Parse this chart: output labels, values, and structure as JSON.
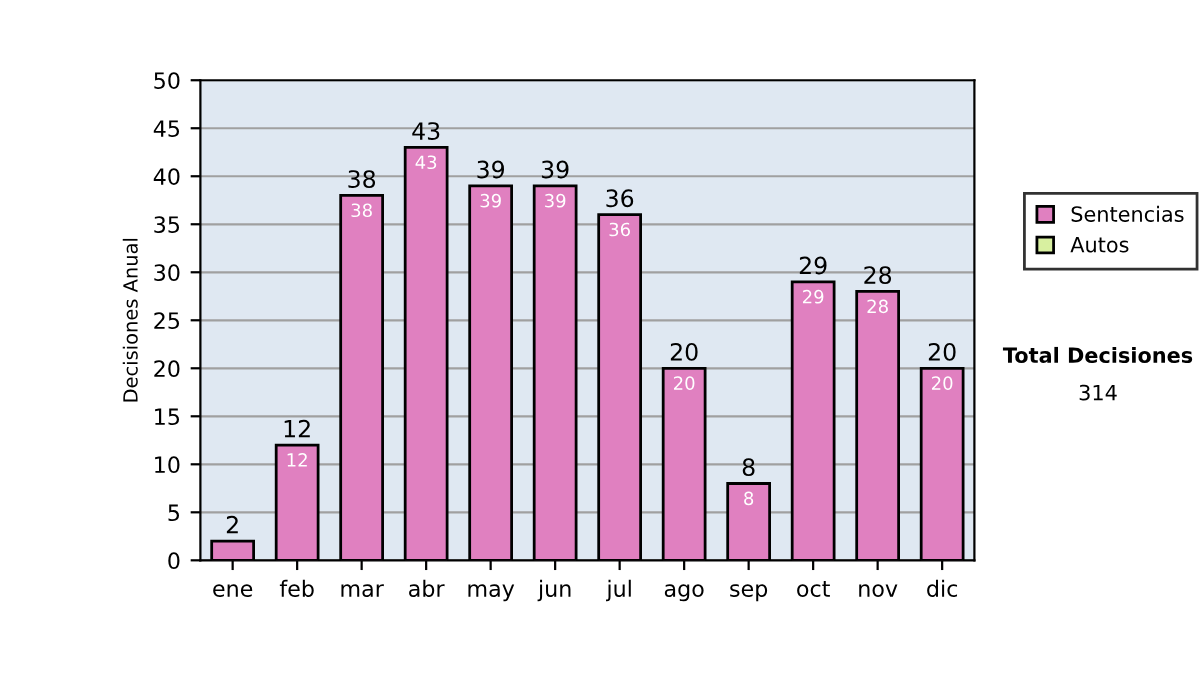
{
  "chart_data": {
    "type": "bar",
    "ylabel": "Decisiones Anual",
    "categories": [
      "ene",
      "feb",
      "mar",
      "abr",
      "may",
      "jun",
      "jul",
      "ago",
      "sep",
      "oct",
      "nov",
      "dic"
    ],
    "series": [
      {
        "name": "Sentencias",
        "color": "#e080c0",
        "values": [
          2,
          12,
          38,
          43,
          39,
          39,
          36,
          20,
          8,
          29,
          28,
          20
        ],
        "value_labels": [
          null,
          "12",
          "38",
          "43",
          "39",
          "39",
          "36",
          "20",
          "8",
          "29",
          "28",
          "20"
        ]
      },
      {
        "name": "Autos",
        "color": "#d8f0a0",
        "values": [
          null,
          null,
          null,
          null,
          null,
          null,
          null,
          null,
          null,
          null,
          null,
          null
        ]
      }
    ],
    "stacked": true,
    "totals": [
      "2",
      "12",
      "38",
      "43",
      "39",
      "39",
      "36",
      "20",
      "8",
      "29",
      "28",
      "20"
    ],
    "ylim": [
      0,
      50
    ],
    "yticks": [
      0,
      5,
      10,
      15,
      20,
      25,
      30,
      35,
      40,
      45,
      50
    ],
    "grid": "y",
    "legend": "right",
    "annotations": [
      "Total Decisiones",
      "314"
    ]
  }
}
